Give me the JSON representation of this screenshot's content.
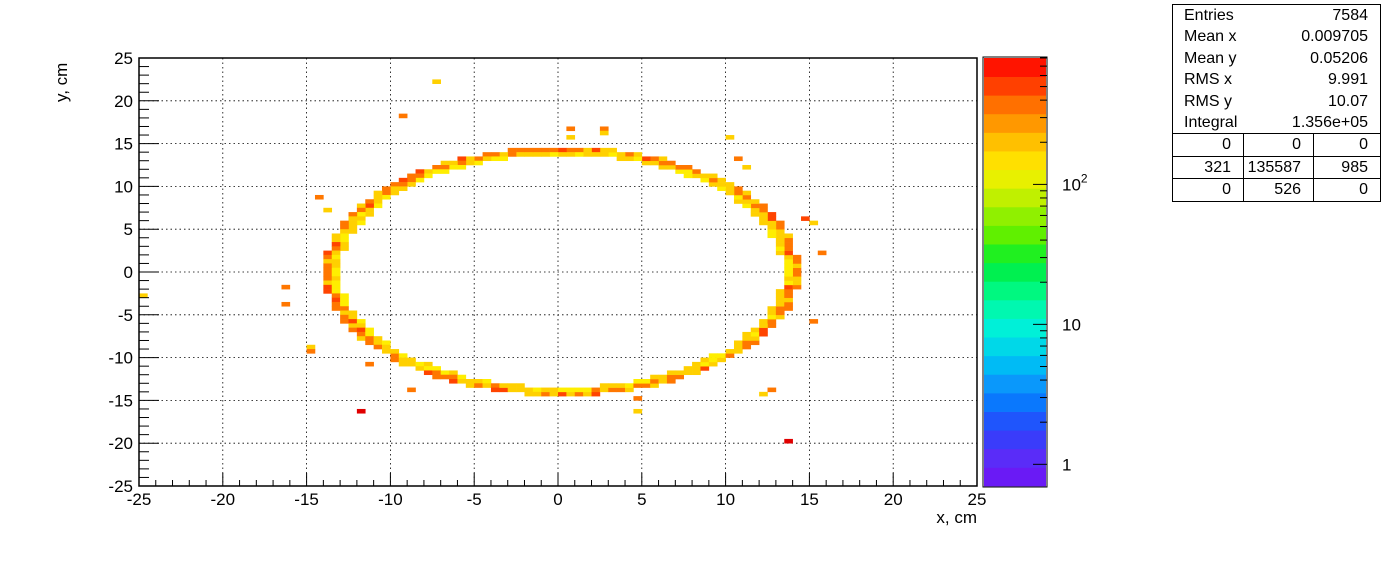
{
  "chart_data": {
    "type": "heatmap",
    "title": "",
    "xlabel": "x, cm",
    "ylabel": "y, cm",
    "xlim": [
      -25,
      25
    ],
    "ylim": [
      -25,
      25
    ],
    "x_ticks": [
      "-25",
      "-20",
      "-15",
      "-10",
      "-5",
      "0",
      "5",
      "10",
      "15",
      "20",
      "25"
    ],
    "y_ticks": [
      "25",
      "20",
      "15",
      "10",
      "5",
      "0",
      "-5",
      "-10",
      "-15",
      "-20",
      "-25"
    ],
    "grid": true,
    "colorbar": {
      "scale": "log",
      "range": [
        0.7,
        800
      ],
      "tick_labels": [
        {
          "value": 1,
          "label": "1"
        },
        {
          "value": 10,
          "label": "10"
        },
        {
          "value": 100,
          "label": "10",
          "exponent": "2"
        }
      ]
    },
    "distribution": {
      "shape": "ellipse",
      "center": [
        0.2,
        0.1
      ],
      "semi_axis_x": 13.9,
      "semi_axis_y": 14.3
    },
    "colors": {
      "high": "#ff4400",
      "mid": "#ff7700",
      "low": "#ffd000",
      "lowest": "#ffee00",
      "max": "#e00000"
    },
    "outliers": [
      {
        "x": -7.3,
        "y": 22.2,
        "level": "low"
      },
      {
        "x": -9.3,
        "y": 18.4,
        "level": "mid"
      },
      {
        "x": 0.6,
        "y": 15.6,
        "level": "low"
      },
      {
        "x": 0.9,
        "y": 16.7,
        "level": "mid"
      },
      {
        "x": 2.7,
        "y": 16.8,
        "level": "mid"
      },
      {
        "x": 2.7,
        "y": 16.2,
        "level": "low"
      },
      {
        "x": 10.1,
        "y": 15.7,
        "level": "low"
      },
      {
        "x": 10.7,
        "y": 13.0,
        "level": "mid"
      },
      {
        "x": 11.1,
        "y": 12.4,
        "level": "low"
      },
      {
        "x": 14.8,
        "y": 6.1,
        "level": "high"
      },
      {
        "x": 15.4,
        "y": 5.6,
        "level": "low"
      },
      {
        "x": 15.5,
        "y": 2.4,
        "level": "mid"
      },
      {
        "x": 15.1,
        "y": -5.8,
        "level": "mid"
      },
      {
        "x": -14.4,
        "y": 8.7,
        "level": "mid"
      },
      {
        "x": -13.9,
        "y": 7.2,
        "level": "low"
      },
      {
        "x": -16.3,
        "y": -1.7,
        "level": "mid"
      },
      {
        "x": -16.5,
        "y": -3.9,
        "level": "mid"
      },
      {
        "x": -16.1,
        "y": -4.0,
        "level": "low"
      },
      {
        "x": -24.8,
        "y": -2.8,
        "level": "low"
      },
      {
        "x": -14.7,
        "y": -9.0,
        "level": "low"
      },
      {
        "x": -14.9,
        "y": -9.5,
        "level": "mid"
      },
      {
        "x": -11.5,
        "y": -10.7,
        "level": "mid"
      },
      {
        "x": -8.6,
        "y": -13.6,
        "level": "mid"
      },
      {
        "x": 8.9,
        "y": -11.0,
        "level": "max"
      },
      {
        "x": 9.3,
        "y": -10.8,
        "level": "mid"
      },
      {
        "x": 12.8,
        "y": -13.7,
        "level": "mid"
      },
      {
        "x": 12.3,
        "y": -14.3,
        "level": "low"
      },
      {
        "x": 4.5,
        "y": -14.8,
        "level": "mid"
      },
      {
        "x": 4.7,
        "y": -16.3,
        "level": "low"
      },
      {
        "x": -11.8,
        "y": -16.4,
        "level": "max"
      },
      {
        "x": 13.6,
        "y": -20.0,
        "level": "max"
      }
    ]
  },
  "stats": {
    "rows": [
      {
        "label": "Entries",
        "value": "7584"
      },
      {
        "label": "Mean x",
        "value": "0.009705"
      },
      {
        "label": "Mean y",
        "value": "0.05206"
      },
      {
        "label": "RMS x",
        "value": "9.991"
      },
      {
        "label": "RMS y",
        "value": "10.07"
      },
      {
        "label": "Integral",
        "value": "1.356e+05"
      }
    ],
    "grid": [
      [
        "0",
        "0",
        "0"
      ],
      [
        "321",
        "135587",
        "985"
      ],
      [
        "0",
        "526",
        "0"
      ]
    ]
  }
}
